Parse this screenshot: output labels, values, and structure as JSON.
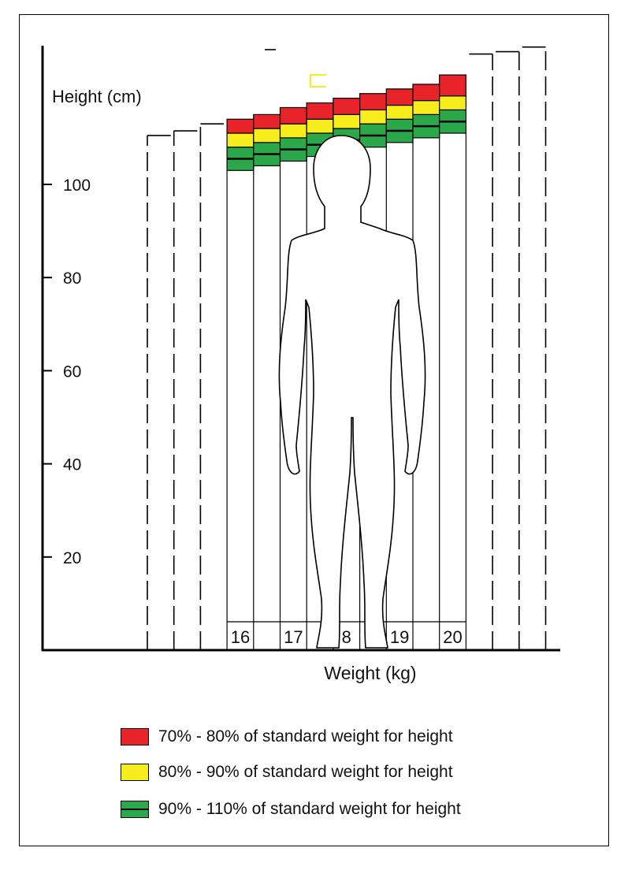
{
  "chart_data": {
    "type": "bar",
    "ylabel": "Height (cm)",
    "xlabel": "Weight (kg)",
    "y_ticks": [
      "20",
      "40",
      "60",
      "80",
      "100"
    ],
    "y_tick_values": [
      20,
      40,
      60,
      80,
      100
    ],
    "ylim": [
      0,
      130
    ],
    "x_labels": [
      "16",
      "17",
      "8",
      "19",
      "20"
    ],
    "dashed_columns_left": [
      110.5,
      111.5,
      113
    ],
    "dashed_columns_right": [
      128,
      128.5,
      129.5
    ],
    "columns": [
      {
        "red": [
          111,
          114
        ],
        "yellow": [
          108,
          111
        ],
        "green": [
          103,
          108
        ]
      },
      {
        "red": [
          112,
          115
        ],
        "yellow": [
          109,
          112
        ],
        "green": [
          104,
          109
        ]
      },
      {
        "red": [
          113,
          116.5
        ],
        "yellow": [
          110,
          113
        ],
        "green": [
          105,
          110
        ]
      },
      {
        "red": [
          114,
          117.5
        ],
        "yellow": [
          111,
          114
        ],
        "green": [
          106,
          111
        ]
      },
      {
        "red": [
          115,
          118.5
        ],
        "yellow": [
          112,
          115
        ],
        "green": [
          107,
          112
        ]
      },
      {
        "red": [
          116,
          119.5
        ],
        "yellow": [
          113,
          116
        ],
        "green": [
          108,
          113
        ]
      },
      {
        "red": [
          117,
          120.5
        ],
        "yellow": [
          114,
          117
        ],
        "green": [
          109,
          114
        ]
      },
      {
        "red": [
          118,
          121.5
        ],
        "yellow": [
          115,
          118
        ],
        "green": [
          110,
          115
        ]
      },
      {
        "red": [
          119,
          123.5
        ],
        "yellow": [
          116,
          119
        ],
        "green": [
          111,
          116
        ]
      }
    ],
    "colors": {
      "red": "#e8232a",
      "yellow": "#f7ec1c",
      "green": "#2aa84a"
    },
    "legend": [
      {
        "label": "70% - 80% of standard weight for height",
        "color": "#e8232a",
        "midline": false
      },
      {
        "label": "80% - 90% of standard weight for height",
        "color": "#f7ec1c",
        "midline": false
      },
      {
        "label": "90% - 110% of standard weight for height",
        "color": "#2aa84a",
        "midline": true
      }
    ],
    "grid": false
  }
}
